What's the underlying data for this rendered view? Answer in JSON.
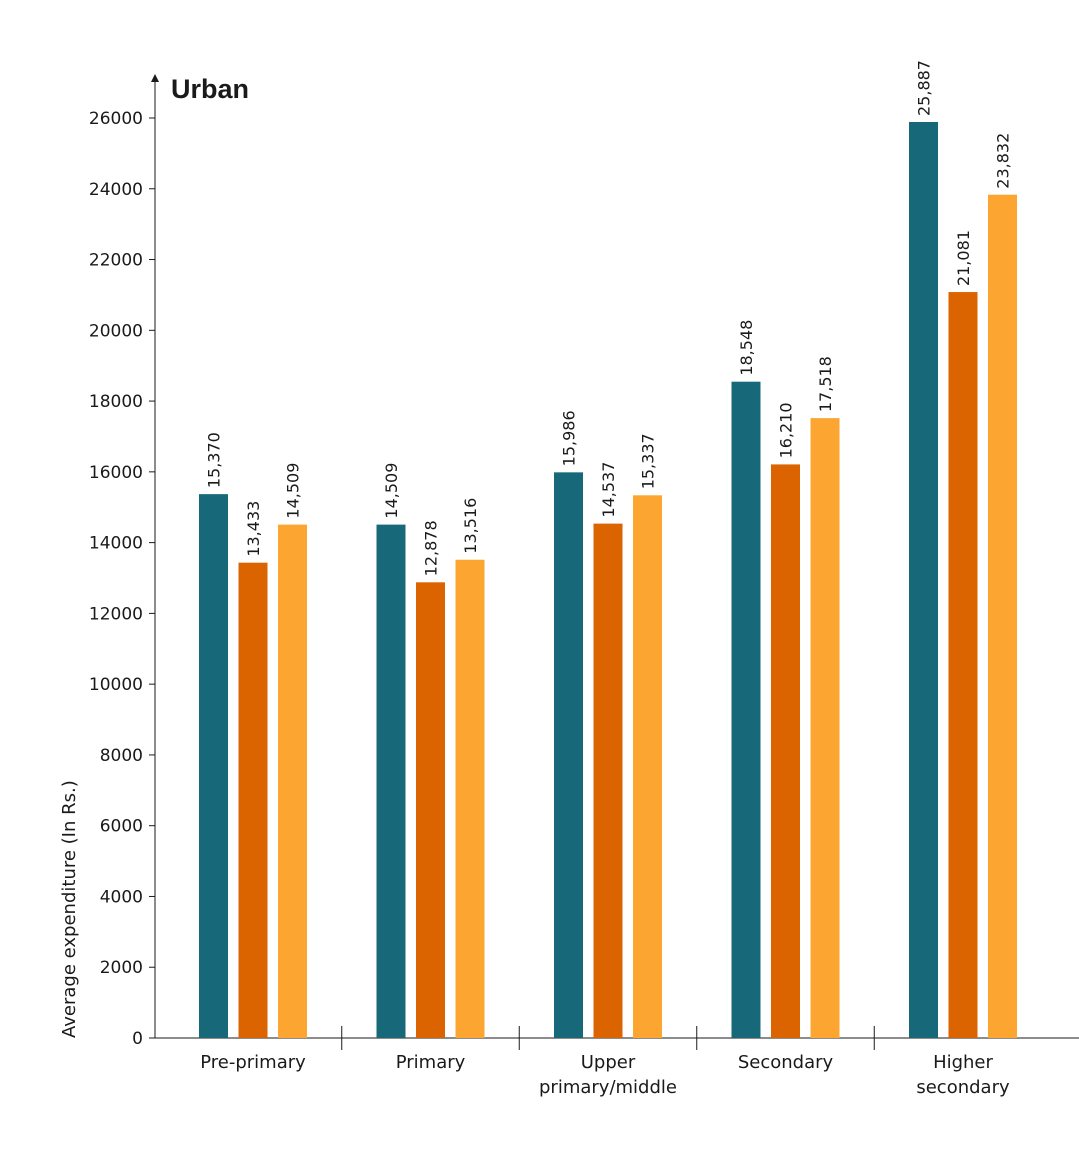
{
  "chart_data": {
    "type": "bar",
    "title": "Urban",
    "xlabel": "",
    "ylabel": "Average expenditure (In Rs.)",
    "ylim": [
      0,
      26000
    ],
    "yticks": [
      0,
      2000,
      4000,
      6000,
      8000,
      10000,
      12000,
      14000,
      16000,
      18000,
      20000,
      22000,
      24000,
      26000
    ],
    "categories": [
      [
        "Pre-primary"
      ],
      [
        "Primary"
      ],
      [
        "Upper",
        "primary/middle"
      ],
      [
        "Secondary"
      ],
      [
        "Higher",
        "secondary"
      ]
    ],
    "series": [
      {
        "color": "#17697a",
        "values": [
          15370,
          14509,
          15986,
          18548,
          25887
        ],
        "labels": [
          "15,370",
          "14,509",
          "15,986",
          "18,548",
          "25,887"
        ]
      },
      {
        "color": "#db6300",
        "values": [
          13433,
          12878,
          14537,
          16210,
          21081
        ],
        "labels": [
          "13,433",
          "12,878",
          "14,537",
          "16,210",
          "21,081"
        ]
      },
      {
        "color": "#fca531",
        "values": [
          14509,
          13516,
          15337,
          17518,
          23832
        ],
        "labels": [
          "14,509",
          "13,516",
          "15,337",
          "17,518",
          "23,832"
        ]
      }
    ],
    "grid": false,
    "legend": "none"
  }
}
